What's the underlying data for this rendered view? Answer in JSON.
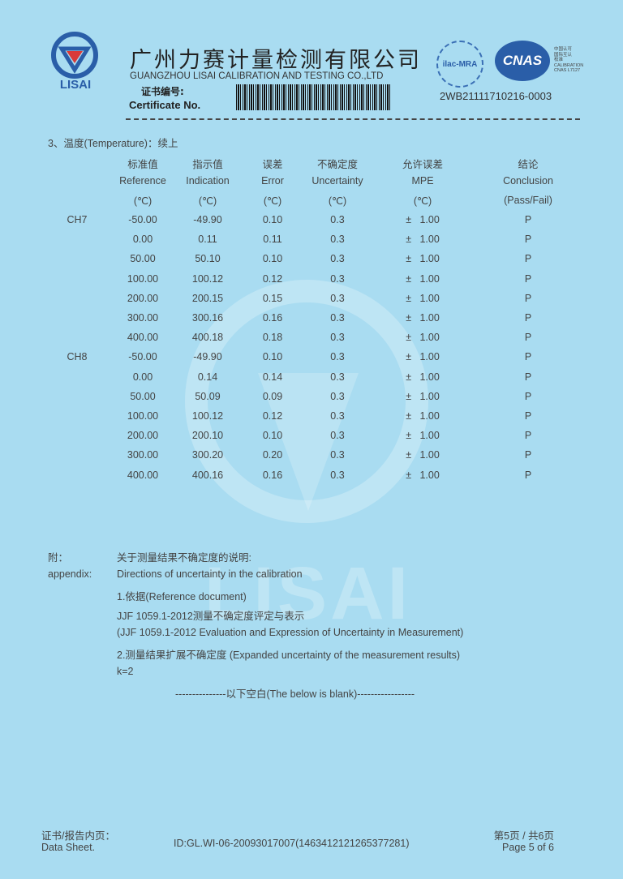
{
  "header": {
    "logo_text": "LISAI",
    "company_cn": "广州力赛计量检测有限公司",
    "company_en": "GUANGZHOU LISAI CALIBRATION AND TESTING CO.,LTD",
    "cert_label_cn": "证书编号:",
    "cert_label_en": "Certificate No.",
    "ilac_text": "ilac-MRA",
    "cnas_text": "CNAS",
    "cnas_side": [
      "中国认可",
      "国际互认",
      "校准",
      "CALIBRATION",
      "CNAS L7127"
    ],
    "certificate_no": "2WB21111710216-0003"
  },
  "section_title": "3、温度(Temperature)：续上",
  "table": {
    "headers": [
      {
        "cn": "标准值",
        "en": "Reference",
        "unit": "(℃)"
      },
      {
        "cn": "指示值",
        "en": "Indication",
        "unit": "(℃)"
      },
      {
        "cn": "误差",
        "en": "Error",
        "unit": "(℃)"
      },
      {
        "cn": "不确定度",
        "en": "Uncertainty",
        "unit": "(℃)"
      },
      {
        "cn": "允许误差",
        "en": "MPE",
        "unit": "(℃)"
      },
      {
        "cn": "结论",
        "en": "Conclusion",
        "unit": "(Pass/Fail)"
      }
    ],
    "rows": [
      {
        "ch": "CH7",
        "cells": [
          "-50.00",
          "-49.90",
          "0.10",
          "0.3",
          "±   1.00",
          "P"
        ]
      },
      {
        "ch": "",
        "cells": [
          "0.00",
          "0.11",
          "0.11",
          "0.3",
          "±   1.00",
          "P"
        ]
      },
      {
        "ch": "",
        "cells": [
          "50.00",
          "50.10",
          "0.10",
          "0.3",
          "±   1.00",
          "P"
        ]
      },
      {
        "ch": "",
        "cells": [
          "100.00",
          "100.12",
          "0.12",
          "0.3",
          "±   1.00",
          "P"
        ]
      },
      {
        "ch": "",
        "cells": [
          "200.00",
          "200.15",
          "0.15",
          "0.3",
          "±   1.00",
          "P"
        ]
      },
      {
        "ch": "",
        "cells": [
          "300.00",
          "300.16",
          "0.16",
          "0.3",
          "±   1.00",
          "P"
        ]
      },
      {
        "ch": "",
        "cells": [
          "400.00",
          "400.18",
          "0.18",
          "0.3",
          "±   1.00",
          "P"
        ]
      },
      {
        "ch": "CH8",
        "cells": [
          "-50.00",
          "-49.90",
          "0.10",
          "0.3",
          "±   1.00",
          "P"
        ]
      },
      {
        "ch": "",
        "cells": [
          "0.00",
          "0.14",
          "0.14",
          "0.3",
          "±   1.00",
          "P"
        ]
      },
      {
        "ch": "",
        "cells": [
          "50.00",
          "50.09",
          "0.09",
          "0.3",
          "±   1.00",
          "P"
        ]
      },
      {
        "ch": "",
        "cells": [
          "100.00",
          "100.12",
          "0.12",
          "0.3",
          "±   1.00",
          "P"
        ]
      },
      {
        "ch": "",
        "cells": [
          "200.00",
          "200.10",
          "0.10",
          "0.3",
          "±   1.00",
          "P"
        ]
      },
      {
        "ch": "",
        "cells": [
          "300.00",
          "300.20",
          "0.20",
          "0.3",
          "±   1.00",
          "P"
        ]
      },
      {
        "ch": "",
        "cells": [
          "400.00",
          "400.16",
          "0.16",
          "0.3",
          "±   1.00",
          "P"
        ]
      }
    ]
  },
  "appendix": {
    "label_cn": "附：",
    "label_en": "appendix:",
    "lines": [
      "关于测量结果不确定度的说明:",
      "Directions of uncertainty in the calibration",
      "1.依据(Reference document)",
      "JJF 1059.1-2012测量不确定度评定与表示",
      "(JJF 1059.1-2012 Evaluation and Expression of Uncertainty in Measurement)",
      "2.测量结果扩展不确定度 (Expanded uncertainty of the measurement results)",
      "k=2"
    ],
    "blank_note": "---------------以下空白(The below is blank)-----------------"
  },
  "watermark": "LISAI",
  "footer": {
    "label_cn": "证书/报告内页：",
    "label_en": "Data Sheet.",
    "id": "ID:GL.WI-06-20093017007(1463412121265377281)",
    "page_cn": "第5页 / 共6页",
    "page_en": "Page 5 of 6"
  },
  "colors": {
    "background": "#a9dcf1",
    "brand_blue": "#2a5ea8",
    "logo_red": "#d83a3a"
  }
}
